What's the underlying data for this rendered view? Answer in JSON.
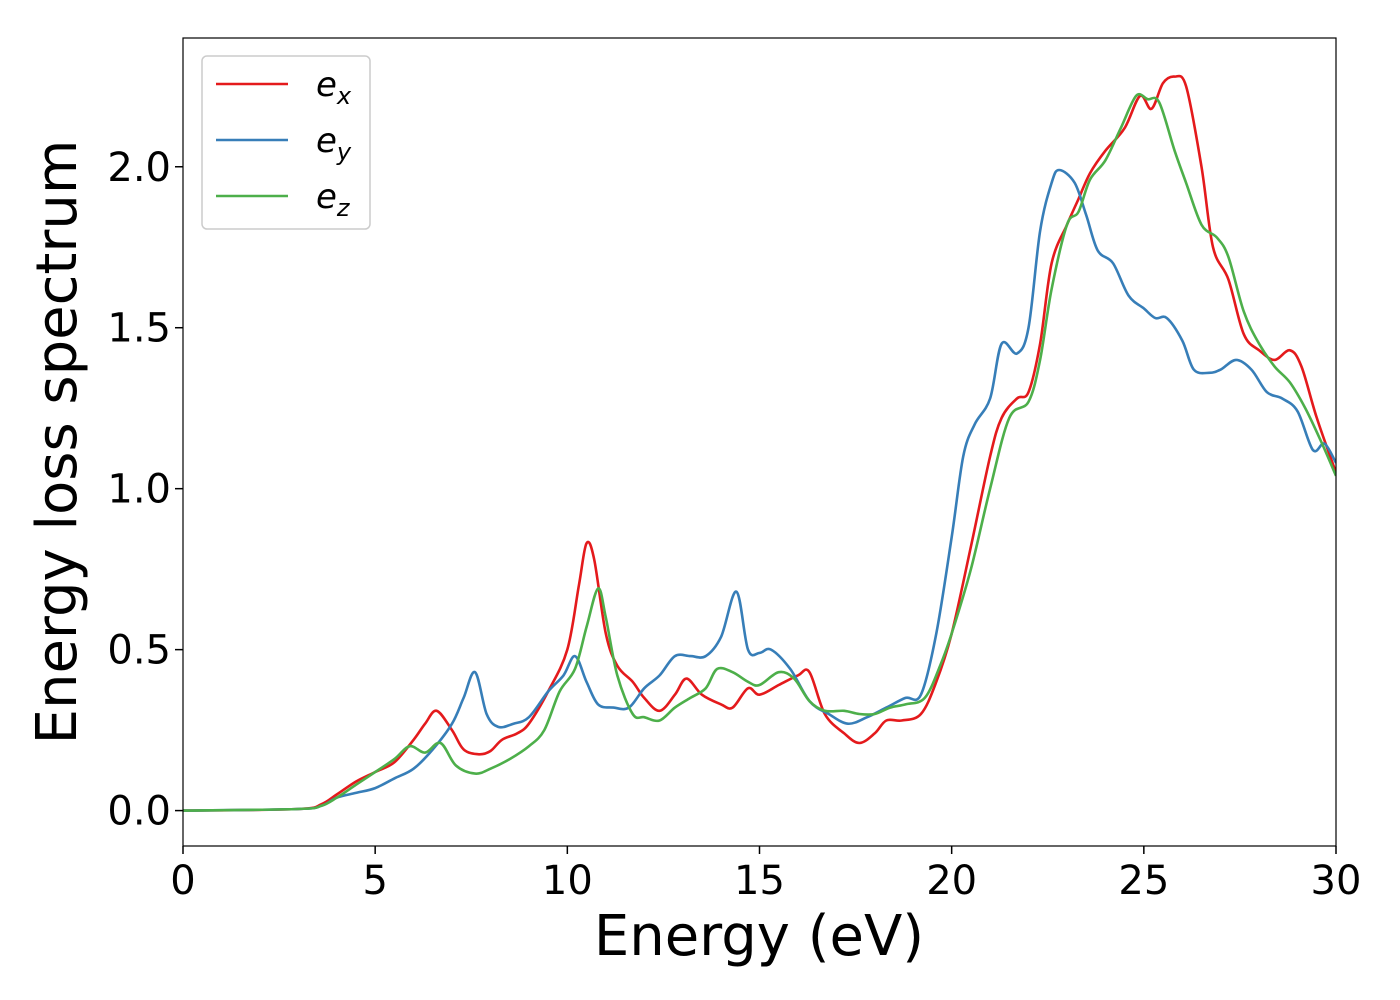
{
  "chart_data": {
    "type": "line",
    "title": "",
    "xlabel": "Energy (eV)",
    "ylabel": "Energy loss spectrum",
    "xlim": [
      0,
      30
    ],
    "ylim": [
      -0.11,
      2.4
    ],
    "xticks": [
      0,
      5,
      10,
      15,
      20,
      25,
      30
    ],
    "xtick_labels": [
      "0",
      "5",
      "10",
      "15",
      "20",
      "25",
      "30"
    ],
    "yticks": [
      0.0,
      0.5,
      1.0,
      1.5,
      2.0
    ],
    "ytick_labels": [
      "0.0",
      "0.5",
      "1.0",
      "1.5",
      "2.0"
    ],
    "grid": false,
    "legend_position": "top-left",
    "series": [
      {
        "name": "e",
        "subscript": "x",
        "color": "#e41a1c",
        "points": [
          [
            0,
            0
          ],
          [
            3,
            0.005
          ],
          [
            3.6,
            0.02
          ],
          [
            4,
            0.05
          ],
          [
            4.5,
            0.09
          ],
          [
            5,
            0.12
          ],
          [
            5.5,
            0.15
          ],
          [
            6,
            0.22
          ],
          [
            6.3,
            0.27
          ],
          [
            6.6,
            0.31
          ],
          [
            7,
            0.25
          ],
          [
            7.3,
            0.19
          ],
          [
            7.7,
            0.175
          ],
          [
            8,
            0.185
          ],
          [
            8.3,
            0.22
          ],
          [
            8.7,
            0.24
          ],
          [
            9,
            0.27
          ],
          [
            9.5,
            0.37
          ],
          [
            10,
            0.5
          ],
          [
            10.3,
            0.7
          ],
          [
            10.5,
            0.83
          ],
          [
            10.7,
            0.78
          ],
          [
            11,
            0.55
          ],
          [
            11.3,
            0.45
          ],
          [
            11.7,
            0.4
          ],
          [
            12,
            0.35
          ],
          [
            12.4,
            0.31
          ],
          [
            12.8,
            0.36
          ],
          [
            13.1,
            0.41
          ],
          [
            13.5,
            0.36
          ],
          [
            14,
            0.33
          ],
          [
            14.3,
            0.32
          ],
          [
            14.7,
            0.38
          ],
          [
            15,
            0.36
          ],
          [
            15.5,
            0.39
          ],
          [
            16,
            0.42
          ],
          [
            16.3,
            0.43
          ],
          [
            16.7,
            0.3
          ],
          [
            17.2,
            0.24
          ],
          [
            17.6,
            0.21
          ],
          [
            18,
            0.24
          ],
          [
            18.3,
            0.28
          ],
          [
            18.7,
            0.28
          ],
          [
            19.2,
            0.3
          ],
          [
            19.6,
            0.4
          ],
          [
            20,
            0.55
          ],
          [
            20.5,
            0.82
          ],
          [
            21,
            1.1
          ],
          [
            21.3,
            1.22
          ],
          [
            21.7,
            1.28
          ],
          [
            22,
            1.3
          ],
          [
            22.3,
            1.45
          ],
          [
            22.6,
            1.7
          ],
          [
            23,
            1.82
          ],
          [
            23.3,
            1.9
          ],
          [
            23.6,
            1.98
          ],
          [
            24,
            2.05
          ],
          [
            24.5,
            2.12
          ],
          [
            24.9,
            2.22
          ],
          [
            25.2,
            2.18
          ],
          [
            25.5,
            2.26
          ],
          [
            25.8,
            2.28
          ],
          [
            26.1,
            2.25
          ],
          [
            26.5,
            2.0
          ],
          [
            26.8,
            1.75
          ],
          [
            27.2,
            1.65
          ],
          [
            27.6,
            1.48
          ],
          [
            28,
            1.43
          ],
          [
            28.4,
            1.4
          ],
          [
            28.8,
            1.43
          ],
          [
            29.1,
            1.38
          ],
          [
            29.5,
            1.22
          ],
          [
            30,
            1.05
          ]
        ]
      },
      {
        "name": "e",
        "subscript": "y",
        "color": "#377eb8",
        "points": [
          [
            0,
            0
          ],
          [
            3,
            0.005
          ],
          [
            3.6,
            0.015
          ],
          [
            4,
            0.04
          ],
          [
            4.5,
            0.055
          ],
          [
            5,
            0.07
          ],
          [
            5.5,
            0.1
          ],
          [
            6,
            0.13
          ],
          [
            6.5,
            0.19
          ],
          [
            7,
            0.27
          ],
          [
            7.3,
            0.35
          ],
          [
            7.6,
            0.43
          ],
          [
            7.9,
            0.3
          ],
          [
            8.2,
            0.26
          ],
          [
            8.6,
            0.27
          ],
          [
            9,
            0.29
          ],
          [
            9.5,
            0.37
          ],
          [
            9.9,
            0.42
          ],
          [
            10.2,
            0.48
          ],
          [
            10.5,
            0.4
          ],
          [
            10.8,
            0.33
          ],
          [
            11.2,
            0.32
          ],
          [
            11.6,
            0.32
          ],
          [
            12,
            0.38
          ],
          [
            12.4,
            0.42
          ],
          [
            12.8,
            0.48
          ],
          [
            13.2,
            0.48
          ],
          [
            13.6,
            0.48
          ],
          [
            14,
            0.54
          ],
          [
            14.4,
            0.68
          ],
          [
            14.7,
            0.5
          ],
          [
            15,
            0.49
          ],
          [
            15.3,
            0.5
          ],
          [
            15.8,
            0.44
          ],
          [
            16.3,
            0.34
          ],
          [
            16.8,
            0.3
          ],
          [
            17.3,
            0.27
          ],
          [
            17.8,
            0.29
          ],
          [
            18.3,
            0.32
          ],
          [
            18.8,
            0.35
          ],
          [
            19.2,
            0.36
          ],
          [
            19.6,
            0.55
          ],
          [
            20,
            0.85
          ],
          [
            20.3,
            1.1
          ],
          [
            20.6,
            1.2
          ],
          [
            21,
            1.28
          ],
          [
            21.3,
            1.45
          ],
          [
            21.7,
            1.42
          ],
          [
            22,
            1.5
          ],
          [
            22.3,
            1.8
          ],
          [
            22.6,
            1.95
          ],
          [
            22.8,
            1.99
          ],
          [
            23.2,
            1.95
          ],
          [
            23.5,
            1.85
          ],
          [
            23.8,
            1.74
          ],
          [
            24.2,
            1.7
          ],
          [
            24.6,
            1.6
          ],
          [
            25,
            1.56
          ],
          [
            25.3,
            1.53
          ],
          [
            25.6,
            1.53
          ],
          [
            26,
            1.46
          ],
          [
            26.3,
            1.37
          ],
          [
            26.7,
            1.36
          ],
          [
            27,
            1.37
          ],
          [
            27.4,
            1.4
          ],
          [
            27.8,
            1.37
          ],
          [
            28.2,
            1.3
          ],
          [
            28.6,
            1.28
          ],
          [
            29,
            1.24
          ],
          [
            29.4,
            1.12
          ],
          [
            29.7,
            1.14
          ],
          [
            30,
            1.08
          ]
        ]
      },
      {
        "name": "e",
        "subscript": "z",
        "color": "#4daf4a",
        "points": [
          [
            0,
            0
          ],
          [
            3,
            0.005
          ],
          [
            3.6,
            0.015
          ],
          [
            4,
            0.04
          ],
          [
            4.5,
            0.08
          ],
          [
            5,
            0.12
          ],
          [
            5.5,
            0.16
          ],
          [
            5.9,
            0.2
          ],
          [
            6.3,
            0.18
          ],
          [
            6.7,
            0.21
          ],
          [
            7.1,
            0.14
          ],
          [
            7.6,
            0.115
          ],
          [
            8,
            0.13
          ],
          [
            8.5,
            0.16
          ],
          [
            9,
            0.2
          ],
          [
            9.4,
            0.25
          ],
          [
            9.8,
            0.37
          ],
          [
            10.2,
            0.44
          ],
          [
            10.5,
            0.57
          ],
          [
            10.8,
            0.69
          ],
          [
            11,
            0.6
          ],
          [
            11.3,
            0.42
          ],
          [
            11.7,
            0.3
          ],
          [
            12,
            0.29
          ],
          [
            12.4,
            0.28
          ],
          [
            12.8,
            0.32
          ],
          [
            13.2,
            0.35
          ],
          [
            13.6,
            0.38
          ],
          [
            13.9,
            0.44
          ],
          [
            14.3,
            0.43
          ],
          [
            14.7,
            0.4
          ],
          [
            15,
            0.39
          ],
          [
            15.5,
            0.43
          ],
          [
            15.9,
            0.41
          ],
          [
            16.3,
            0.34
          ],
          [
            16.7,
            0.31
          ],
          [
            17.2,
            0.31
          ],
          [
            17.6,
            0.3
          ],
          [
            18,
            0.3
          ],
          [
            18.4,
            0.32
          ],
          [
            18.8,
            0.33
          ],
          [
            19.3,
            0.35
          ],
          [
            19.7,
            0.45
          ],
          [
            20,
            0.55
          ],
          [
            20.5,
            0.75
          ],
          [
            21,
            1.0
          ],
          [
            21.5,
            1.22
          ],
          [
            22,
            1.27
          ],
          [
            22.3,
            1.4
          ],
          [
            22.6,
            1.62
          ],
          [
            23,
            1.82
          ],
          [
            23.3,
            1.86
          ],
          [
            23.6,
            1.96
          ],
          [
            24,
            2.02
          ],
          [
            24.4,
            2.12
          ],
          [
            24.8,
            2.22
          ],
          [
            25.1,
            2.21
          ],
          [
            25.4,
            2.2
          ],
          [
            25.8,
            2.05
          ],
          [
            26.1,
            1.95
          ],
          [
            26.5,
            1.82
          ],
          [
            26.9,
            1.78
          ],
          [
            27.2,
            1.72
          ],
          [
            27.6,
            1.55
          ],
          [
            28,
            1.45
          ],
          [
            28.4,
            1.38
          ],
          [
            28.8,
            1.33
          ],
          [
            29.2,
            1.25
          ],
          [
            29.6,
            1.15
          ],
          [
            30,
            1.04
          ]
        ]
      }
    ]
  }
}
